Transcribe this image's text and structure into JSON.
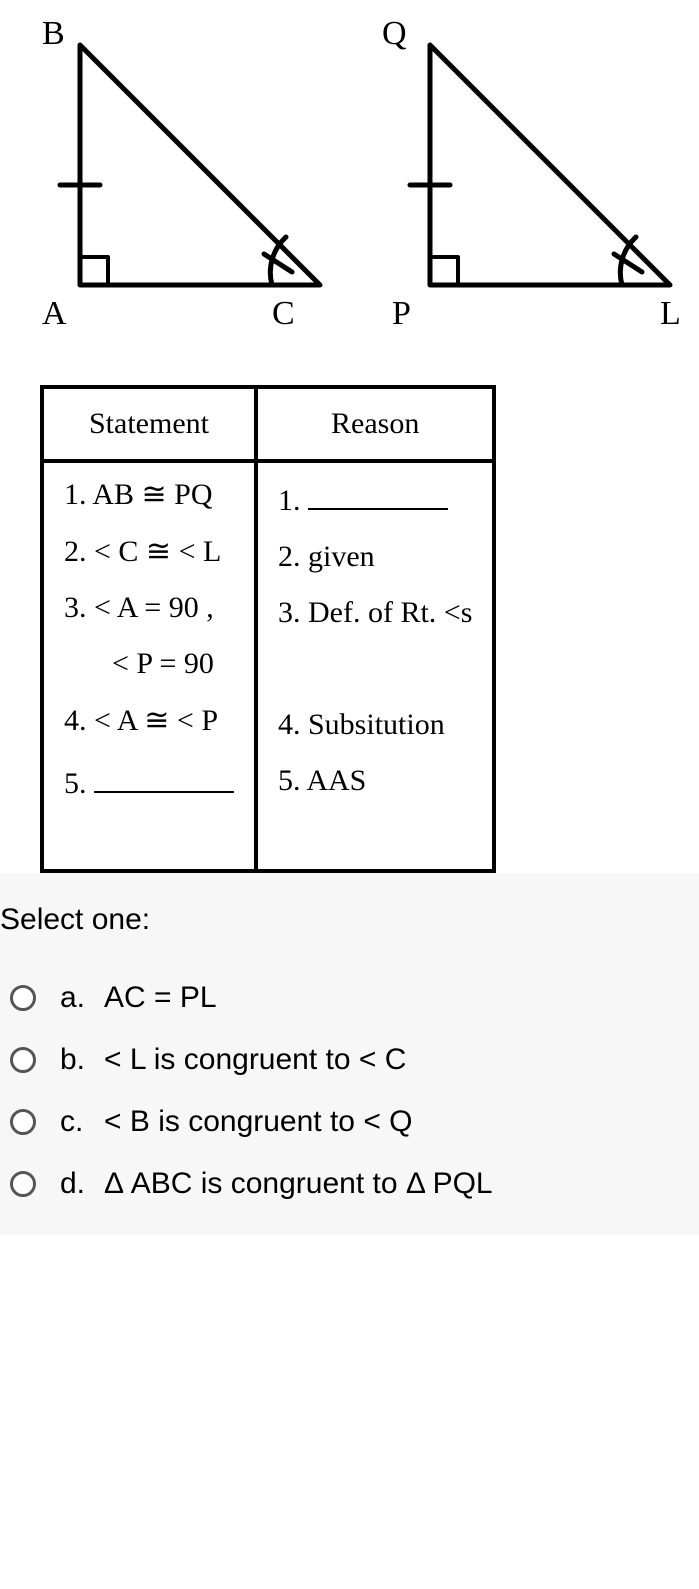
{
  "diagram": {
    "triangle1": {
      "vertices": {
        "top": "B",
        "bottom_left": "A",
        "bottom_right": "C"
      },
      "points": {
        "B": [
          60,
          35
        ],
        "A": [
          60,
          275
        ],
        "C": [
          300,
          275
        ]
      },
      "right_angle_at": "A",
      "tick_on": "AB",
      "arc_at": "C"
    },
    "triangle2": {
      "vertices": {
        "top": "Q",
        "bottom_left": "P",
        "bottom_right": "L"
      },
      "points": {
        "Q": [
          410,
          35
        ],
        "P": [
          410,
          275
        ],
        "L": [
          650,
          275
        ]
      },
      "right_angle_at": "P",
      "tick_on": "PQ",
      "arc_at": "L"
    },
    "stroke": "#000000",
    "stroke_width": 5,
    "label_fontsize": 34
  },
  "table": {
    "headers": {
      "left": "Statement",
      "right": "Reason"
    },
    "rows": [
      {
        "s_num": "1.",
        "s_text": "AB ≅ PQ",
        "r_num": "1.",
        "r_text": "__blank__"
      },
      {
        "s_num": "2.",
        "s_text": "< C ≅ < L",
        "r_num": "2.",
        "r_text": "given"
      },
      {
        "s_num": "3.",
        "s_text": "< A = 90 ,",
        "s_text2": "< P = 90",
        "r_num": "3.",
        "r_text": "Def. of Rt. <s"
      },
      {
        "s_num": "4.",
        "s_text": "< A ≅ < P",
        "r_num": "4.",
        "r_text": "Subsitution"
      },
      {
        "s_num": "5.",
        "s_text": "__blank__",
        "r_num": "5.",
        "r_text": "AAS"
      }
    ]
  },
  "question": {
    "prompt": "Select one:",
    "options": [
      {
        "letter": "a.",
        "text": "AC = PL"
      },
      {
        "letter": "b.",
        "text": "< L is congruent to < C"
      },
      {
        "letter": "c.",
        "text": "< B is congruent to < Q"
      },
      {
        "letter": "d.",
        "text": "Δ ABC is congruent to Δ PQL"
      }
    ]
  }
}
